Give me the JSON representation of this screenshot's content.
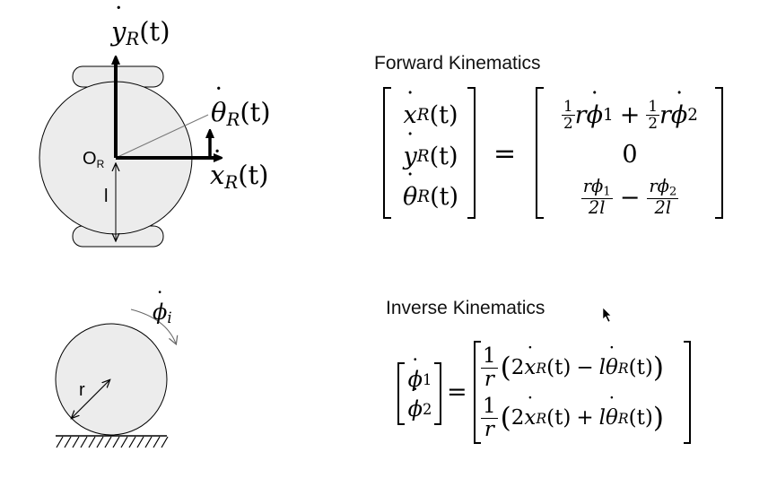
{
  "diagram": {
    "origin_label": "O",
    "origin_sub": "R",
    "half_width_label": "l",
    "radius_label": "r",
    "axis_y": {
      "base": "y",
      "sub": "R",
      "arg": "(t)"
    },
    "axis_x": {
      "base": "x",
      "sub": "R",
      "arg": "(t)"
    },
    "axis_theta": {
      "base": "θ",
      "sub": "R",
      "arg": "(t)"
    },
    "wheel_rate": {
      "base": "ϕ",
      "sub": "i"
    }
  },
  "forward": {
    "title": "Forward Kinematics",
    "lhs": [
      {
        "base": "x",
        "sub": "R",
        "arg": "(t)"
      },
      {
        "base": "y",
        "sub": "R",
        "arg": "(t)"
      },
      {
        "base": "θ",
        "sub": "R",
        "arg": "(t)"
      }
    ],
    "equals": "=",
    "rhs_row1": {
      "half": "1",
      "two": "2",
      "r": "r",
      "phi": "ϕ",
      "s1": "1",
      "s2": "2",
      "plus": "+"
    },
    "rhs_row2": "0",
    "rhs_row3": {
      "num": "rϕ",
      "s1": "1",
      "s2": "2",
      "den": "2l",
      "minus": "−"
    }
  },
  "inverse": {
    "title": "Inverse Kinematics",
    "lhs": [
      {
        "base": "ϕ",
        "sub": "1"
      },
      {
        "base": "ϕ",
        "sub": "2"
      }
    ],
    "equals": "=",
    "rows": [
      {
        "num": "1",
        "den": "r",
        "open": "(",
        "two": "2",
        "x": "x",
        "xsub": "R",
        "xarg": "(t)",
        "op": "−",
        "l": "l",
        "th": "θ",
        "thsub": "R",
        "tharg": "(t)",
        "close": ")"
      },
      {
        "num": "1",
        "den": "r",
        "open": "(",
        "two": "2",
        "x": "x",
        "xsub": "R",
        "xarg": "(t)",
        "op": "+",
        "l": "l",
        "th": "θ",
        "thsub": "R",
        "tharg": "(t)",
        "close": ")"
      }
    ]
  },
  "colors": {
    "body_fill": "#ececec",
    "stroke": "#000000",
    "thin_line": "#666666"
  }
}
